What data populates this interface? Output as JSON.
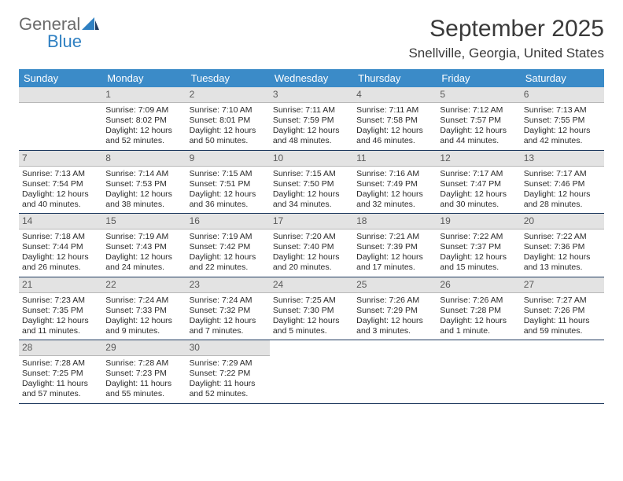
{
  "logo": {
    "text1": "General",
    "text2": "Blue"
  },
  "title": "September 2025",
  "location": "Snellville, Georgia, United States",
  "colors": {
    "header_bg": "#3b8bc8",
    "header_text": "#ffffff",
    "daynum_bg": "#e3e3e3",
    "daynum_text": "#5a5a5a",
    "divider": "#1f3a5f",
    "body_text": "#2a2a2a",
    "logo_gray": "#6b6b6b",
    "logo_blue": "#2f80c2",
    "title_text": "#3a3a3a",
    "background": "#ffffff"
  },
  "typography": {
    "title_fontsize": 30,
    "location_fontsize": 17,
    "header_fontsize": 13,
    "daynum_fontsize": 12,
    "cell_fontsize": 10.5,
    "logo_fontsize": 22
  },
  "layout": {
    "columns": 7,
    "rows": 5,
    "cell_min_height": 78
  },
  "day_headers": [
    "Sunday",
    "Monday",
    "Tuesday",
    "Wednesday",
    "Thursday",
    "Friday",
    "Saturday"
  ],
  "weeks": [
    [
      {
        "empty": true
      },
      {
        "num": "1",
        "sunrise": "Sunrise: 7:09 AM",
        "sunset": "Sunset: 8:02 PM",
        "day1": "Daylight: 12 hours",
        "day2": "and 52 minutes."
      },
      {
        "num": "2",
        "sunrise": "Sunrise: 7:10 AM",
        "sunset": "Sunset: 8:01 PM",
        "day1": "Daylight: 12 hours",
        "day2": "and 50 minutes."
      },
      {
        "num": "3",
        "sunrise": "Sunrise: 7:11 AM",
        "sunset": "Sunset: 7:59 PM",
        "day1": "Daylight: 12 hours",
        "day2": "and 48 minutes."
      },
      {
        "num": "4",
        "sunrise": "Sunrise: 7:11 AM",
        "sunset": "Sunset: 7:58 PM",
        "day1": "Daylight: 12 hours",
        "day2": "and 46 minutes."
      },
      {
        "num": "5",
        "sunrise": "Sunrise: 7:12 AM",
        "sunset": "Sunset: 7:57 PM",
        "day1": "Daylight: 12 hours",
        "day2": "and 44 minutes."
      },
      {
        "num": "6",
        "sunrise": "Sunrise: 7:13 AM",
        "sunset": "Sunset: 7:55 PM",
        "day1": "Daylight: 12 hours",
        "day2": "and 42 minutes."
      }
    ],
    [
      {
        "num": "7",
        "sunrise": "Sunrise: 7:13 AM",
        "sunset": "Sunset: 7:54 PM",
        "day1": "Daylight: 12 hours",
        "day2": "and 40 minutes."
      },
      {
        "num": "8",
        "sunrise": "Sunrise: 7:14 AM",
        "sunset": "Sunset: 7:53 PM",
        "day1": "Daylight: 12 hours",
        "day2": "and 38 minutes."
      },
      {
        "num": "9",
        "sunrise": "Sunrise: 7:15 AM",
        "sunset": "Sunset: 7:51 PM",
        "day1": "Daylight: 12 hours",
        "day2": "and 36 minutes."
      },
      {
        "num": "10",
        "sunrise": "Sunrise: 7:15 AM",
        "sunset": "Sunset: 7:50 PM",
        "day1": "Daylight: 12 hours",
        "day2": "and 34 minutes."
      },
      {
        "num": "11",
        "sunrise": "Sunrise: 7:16 AM",
        "sunset": "Sunset: 7:49 PM",
        "day1": "Daylight: 12 hours",
        "day2": "and 32 minutes."
      },
      {
        "num": "12",
        "sunrise": "Sunrise: 7:17 AM",
        "sunset": "Sunset: 7:47 PM",
        "day1": "Daylight: 12 hours",
        "day2": "and 30 minutes."
      },
      {
        "num": "13",
        "sunrise": "Sunrise: 7:17 AM",
        "sunset": "Sunset: 7:46 PM",
        "day1": "Daylight: 12 hours",
        "day2": "and 28 minutes."
      }
    ],
    [
      {
        "num": "14",
        "sunrise": "Sunrise: 7:18 AM",
        "sunset": "Sunset: 7:44 PM",
        "day1": "Daylight: 12 hours",
        "day2": "and 26 minutes."
      },
      {
        "num": "15",
        "sunrise": "Sunrise: 7:19 AM",
        "sunset": "Sunset: 7:43 PM",
        "day1": "Daylight: 12 hours",
        "day2": "and 24 minutes."
      },
      {
        "num": "16",
        "sunrise": "Sunrise: 7:19 AM",
        "sunset": "Sunset: 7:42 PM",
        "day1": "Daylight: 12 hours",
        "day2": "and 22 minutes."
      },
      {
        "num": "17",
        "sunrise": "Sunrise: 7:20 AM",
        "sunset": "Sunset: 7:40 PM",
        "day1": "Daylight: 12 hours",
        "day2": "and 20 minutes."
      },
      {
        "num": "18",
        "sunrise": "Sunrise: 7:21 AM",
        "sunset": "Sunset: 7:39 PM",
        "day1": "Daylight: 12 hours",
        "day2": "and 17 minutes."
      },
      {
        "num": "19",
        "sunrise": "Sunrise: 7:22 AM",
        "sunset": "Sunset: 7:37 PM",
        "day1": "Daylight: 12 hours",
        "day2": "and 15 minutes."
      },
      {
        "num": "20",
        "sunrise": "Sunrise: 7:22 AM",
        "sunset": "Sunset: 7:36 PM",
        "day1": "Daylight: 12 hours",
        "day2": "and 13 minutes."
      }
    ],
    [
      {
        "num": "21",
        "sunrise": "Sunrise: 7:23 AM",
        "sunset": "Sunset: 7:35 PM",
        "day1": "Daylight: 12 hours",
        "day2": "and 11 minutes."
      },
      {
        "num": "22",
        "sunrise": "Sunrise: 7:24 AM",
        "sunset": "Sunset: 7:33 PM",
        "day1": "Daylight: 12 hours",
        "day2": "and 9 minutes."
      },
      {
        "num": "23",
        "sunrise": "Sunrise: 7:24 AM",
        "sunset": "Sunset: 7:32 PM",
        "day1": "Daylight: 12 hours",
        "day2": "and 7 minutes."
      },
      {
        "num": "24",
        "sunrise": "Sunrise: 7:25 AM",
        "sunset": "Sunset: 7:30 PM",
        "day1": "Daylight: 12 hours",
        "day2": "and 5 minutes."
      },
      {
        "num": "25",
        "sunrise": "Sunrise: 7:26 AM",
        "sunset": "Sunset: 7:29 PM",
        "day1": "Daylight: 12 hours",
        "day2": "and 3 minutes."
      },
      {
        "num": "26",
        "sunrise": "Sunrise: 7:26 AM",
        "sunset": "Sunset: 7:28 PM",
        "day1": "Daylight: 12 hours",
        "day2": "and 1 minute."
      },
      {
        "num": "27",
        "sunrise": "Sunrise: 7:27 AM",
        "sunset": "Sunset: 7:26 PM",
        "day1": "Daylight: 11 hours",
        "day2": "and 59 minutes."
      }
    ],
    [
      {
        "num": "28",
        "sunrise": "Sunrise: 7:28 AM",
        "sunset": "Sunset: 7:25 PM",
        "day1": "Daylight: 11 hours",
        "day2": "and 57 minutes."
      },
      {
        "num": "29",
        "sunrise": "Sunrise: 7:28 AM",
        "sunset": "Sunset: 7:23 PM",
        "day1": "Daylight: 11 hours",
        "day2": "and 55 minutes."
      },
      {
        "num": "30",
        "sunrise": "Sunrise: 7:29 AM",
        "sunset": "Sunset: 7:22 PM",
        "day1": "Daylight: 11 hours",
        "day2": "and 52 minutes."
      },
      {
        "empty": true
      },
      {
        "empty": true
      },
      {
        "empty": true
      },
      {
        "empty": true
      }
    ]
  ]
}
